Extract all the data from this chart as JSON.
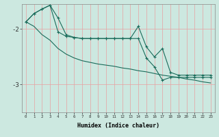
{
  "xlabel": "Humidex (Indice chaleur)",
  "ylabel": "",
  "bg_color": "#cce8e0",
  "plot_bg_color": "#cce8e0",
  "line_color": "#1a6b5a",
  "grid_color_v": "#e8a0a0",
  "grid_color_h": "#e8a0a0",
  "ylim": [
    -3.5,
    -1.55
  ],
  "xlim": [
    -0.5,
    23.5
  ],
  "yticks": [
    -3,
    -2
  ],
  "xticks": [
    0,
    1,
    2,
    3,
    4,
    5,
    6,
    7,
    8,
    9,
    10,
    11,
    12,
    13,
    14,
    15,
    16,
    17,
    18,
    19,
    20,
    21,
    22,
    23
  ],
  "series1_x": [
    0,
    1,
    2,
    3,
    4,
    5,
    6,
    7,
    8,
    9,
    10,
    11,
    12,
    13,
    14,
    15,
    16,
    17,
    18,
    19,
    20,
    21,
    22,
    23
  ],
  "series1_y": [
    -1.87,
    -1.72,
    -1.64,
    -1.57,
    -1.8,
    -2.1,
    -2.15,
    -2.17,
    -2.17,
    -2.17,
    -2.17,
    -2.17,
    -2.17,
    -2.17,
    -1.95,
    -2.32,
    -2.5,
    -2.35,
    -2.78,
    -2.83,
    -2.83,
    -2.83,
    -2.83,
    -2.83
  ],
  "series2_x": [
    0,
    1,
    2,
    3,
    4,
    5,
    6,
    7,
    8,
    9,
    10,
    11,
    12,
    13,
    14,
    15,
    16,
    17,
    18,
    19,
    20,
    21,
    22,
    23
  ],
  "series2_y": [
    -1.87,
    -1.72,
    -1.64,
    -1.57,
    -2.05,
    -2.13,
    -2.15,
    -2.17,
    -2.17,
    -2.17,
    -2.17,
    -2.17,
    -2.17,
    -2.17,
    -2.17,
    -2.52,
    -2.68,
    -2.92,
    -2.87,
    -2.87,
    -2.87,
    -2.87,
    -2.87,
    -2.87
  ],
  "series3_x": [
    0,
    1,
    2,
    3,
    4,
    5,
    6,
    7,
    8,
    9,
    10,
    11,
    12,
    13,
    14,
    15,
    16,
    17,
    18,
    19,
    20,
    21,
    22,
    23
  ],
  "series3_y": [
    -1.87,
    -1.95,
    -2.1,
    -2.2,
    -2.35,
    -2.45,
    -2.52,
    -2.57,
    -2.6,
    -2.63,
    -2.65,
    -2.67,
    -2.7,
    -2.72,
    -2.75,
    -2.77,
    -2.8,
    -2.83,
    -2.85,
    -2.87,
    -2.9,
    -2.92,
    -2.95,
    -2.97
  ],
  "marker": "+",
  "markersize": 3,
  "linewidth": 0.8
}
